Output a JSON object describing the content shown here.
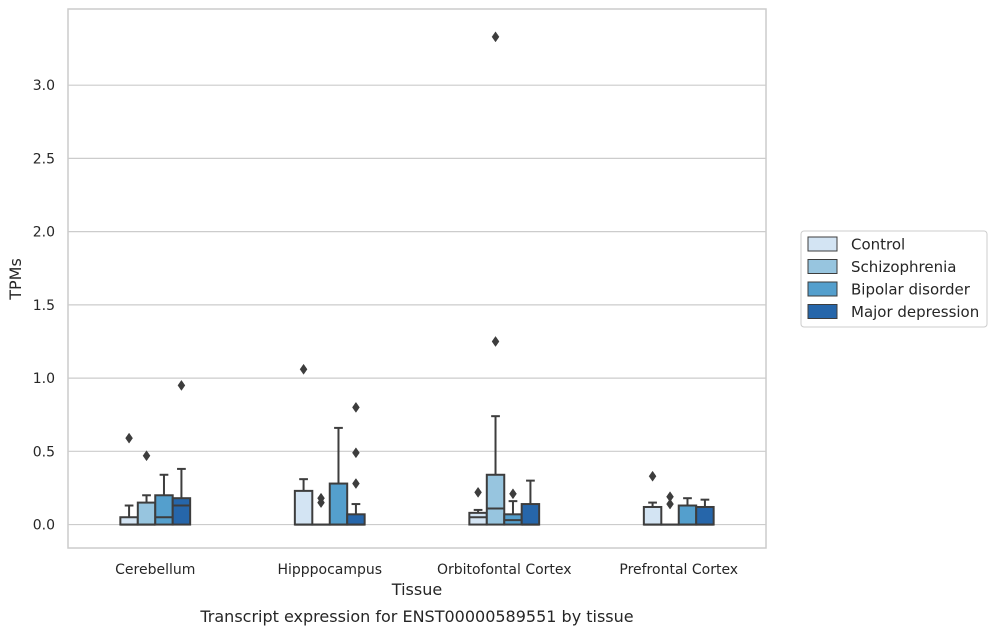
{
  "chart_data": {
    "type": "box",
    "caption": "Transcript expression for ENST00000589551 by tissue",
    "xlabel": "Tissue",
    "ylabel": "TPMs",
    "ylim": [
      -0.16,
      3.52
    ],
    "yticks": [
      0.0,
      0.5,
      1.0,
      1.5,
      2.0,
      2.5,
      3.0
    ],
    "ytick_labels": [
      "0.0",
      "0.5",
      "1.0",
      "1.5",
      "2.0",
      "2.5",
      "3.0"
    ],
    "grid": true,
    "legend_position": "right",
    "categories": [
      "Cerebellum",
      "Hipppocampus",
      "Orbitofontal Cortex",
      "Prefrontal Cortex"
    ],
    "series": [
      {
        "name": "Control",
        "color": "#d3e4f3",
        "boxes": [
          {
            "q1": 0.0,
            "median": 0.0,
            "q3": 0.05,
            "whislo": 0.0,
            "whishi": 0.13,
            "fliers": [
              0.59
            ]
          },
          {
            "q1": 0.0,
            "median": 0.0,
            "q3": 0.23,
            "whislo": 0.0,
            "whishi": 0.31,
            "fliers": [
              1.06
            ]
          },
          {
            "q1": 0.0,
            "median": 0.05,
            "q3": 0.08,
            "whislo": 0.0,
            "whishi": 0.1,
            "fliers": [
              0.22
            ]
          },
          {
            "q1": 0.0,
            "median": 0.0,
            "q3": 0.12,
            "whislo": 0.0,
            "whishi": 0.15,
            "fliers": [
              0.33
            ]
          }
        ]
      },
      {
        "name": "Schizophrenia",
        "color": "#97c5df",
        "boxes": [
          {
            "q1": 0.0,
            "median": 0.0,
            "q3": 0.15,
            "whislo": 0.0,
            "whishi": 0.2,
            "fliers": [
              0.47
            ]
          },
          {
            "q1": 0.0,
            "median": 0.0,
            "q3": 0.0,
            "whislo": 0.0,
            "whishi": 0.0,
            "fliers": [
              0.15,
              0.18
            ]
          },
          {
            "q1": 0.0,
            "median": 0.11,
            "q3": 0.34,
            "whislo": 0.0,
            "whishi": 0.74,
            "fliers": [
              1.25,
              3.33
            ]
          },
          {
            "q1": 0.0,
            "median": 0.0,
            "q3": 0.0,
            "whislo": 0.0,
            "whishi": 0.0,
            "fliers": [
              0.14,
              0.19
            ]
          }
        ]
      },
      {
        "name": "Bipolar disorder",
        "color": "#549fcd",
        "boxes": [
          {
            "q1": 0.0,
            "median": 0.05,
            "q3": 0.2,
            "whislo": 0.0,
            "whishi": 0.34,
            "fliers": []
          },
          {
            "q1": 0.0,
            "median": 0.0,
            "q3": 0.28,
            "whislo": 0.0,
            "whishi": 0.66,
            "fliers": []
          },
          {
            "q1": 0.0,
            "median": 0.03,
            "q3": 0.07,
            "whislo": 0.0,
            "whishi": 0.16,
            "fliers": [
              0.21
            ]
          },
          {
            "q1": 0.0,
            "median": 0.0,
            "q3": 0.13,
            "whislo": 0.0,
            "whishi": 0.18,
            "fliers": []
          }
        ]
      },
      {
        "name": "Major depression",
        "color": "#2666aa",
        "boxes": [
          {
            "q1": 0.0,
            "median": 0.13,
            "q3": 0.18,
            "whislo": 0.0,
            "whishi": 0.38,
            "fliers": [
              0.95
            ]
          },
          {
            "q1": 0.0,
            "median": 0.0,
            "q3": 0.07,
            "whislo": 0.0,
            "whishi": 0.14,
            "fliers": [
              0.28,
              0.49,
              0.8
            ]
          },
          {
            "q1": 0.0,
            "median": 0.0,
            "q3": 0.14,
            "whislo": 0.0,
            "whishi": 0.3,
            "fliers": []
          },
          {
            "q1": 0.0,
            "median": 0.0,
            "q3": 0.12,
            "whislo": 0.0,
            "whishi": 0.17,
            "fliers": []
          }
        ]
      }
    ]
  },
  "colors": {
    "grid": "#cccccc",
    "frame": "#cccccc",
    "line": "#3d3d3d",
    "legend_border": "#cccccc"
  }
}
